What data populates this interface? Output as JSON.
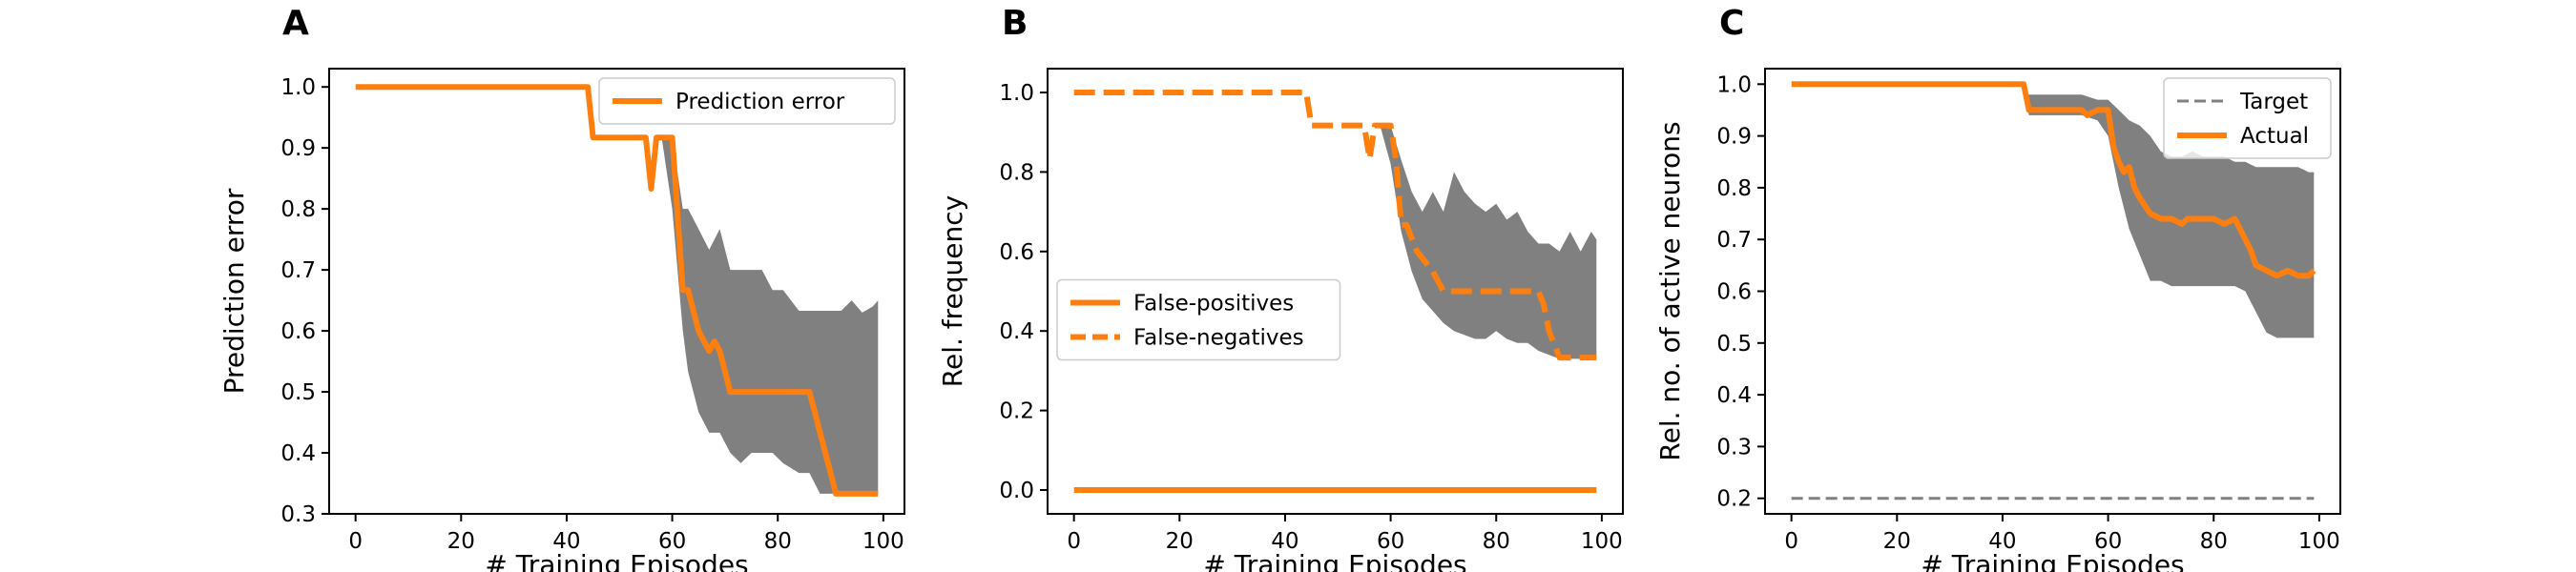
{
  "chart_data": [
    {
      "panel_label": "A",
      "type": "line",
      "xlabel": "# Training Episodes",
      "ylabel": "Prediction error",
      "xlim": [
        -5,
        104
      ],
      "ylim": [
        0.3,
        1.03
      ],
      "xticks": [
        0,
        20,
        40,
        60,
        80,
        100
      ],
      "yticks": [
        0.3,
        0.4,
        0.5,
        0.6,
        0.7,
        0.8,
        0.9,
        1.0
      ],
      "ytick_labels": [
        "0.3",
        "0.4",
        "0.5",
        "0.6",
        "0.7",
        "0.8",
        "0.9",
        "1.0"
      ],
      "legend": {
        "position": "upper right",
        "entries": [
          {
            "label": "Prediction error",
            "color": "#ff7f0e",
            "style": "solid"
          }
        ]
      },
      "series": [
        {
          "name": "Prediction error",
          "color": "#ff7f0e",
          "style": "solid",
          "x": [
            0,
            44,
            45,
            55,
            56,
            57,
            60,
            62,
            63,
            65,
            67,
            68,
            69,
            71,
            72,
            86,
            87,
            88,
            90,
            91,
            99
          ],
          "y": [
            1.0,
            1.0,
            0.917,
            0.917,
            0.833,
            0.917,
            0.917,
            0.667,
            0.667,
            0.6,
            0.567,
            0.583,
            0.567,
            0.5,
            0.5,
            0.5,
            0.467,
            0.433,
            0.367,
            0.333,
            0.333
          ]
        }
      ],
      "band": {
        "color": "#808080",
        "x": [
          58,
          60,
          62,
          63,
          65,
          67,
          69,
          71,
          73,
          75,
          77,
          79,
          81,
          84,
          86,
          88,
          90,
          92,
          94,
          96,
          98,
          99
        ],
        "upper": [
          0.917,
          0.917,
          0.8,
          0.8,
          0.767,
          0.733,
          0.767,
          0.7,
          0.7,
          0.7,
          0.7,
          0.667,
          0.667,
          0.633,
          0.633,
          0.633,
          0.633,
          0.633,
          0.65,
          0.63,
          0.64,
          0.65
        ],
        "lower": [
          0.917,
          0.8,
          0.6,
          0.533,
          0.467,
          0.433,
          0.433,
          0.4,
          0.383,
          0.4,
          0.4,
          0.4,
          0.383,
          0.367,
          0.367,
          0.333,
          0.333,
          0.333,
          0.333,
          0.333,
          0.333,
          0.333
        ]
      }
    },
    {
      "panel_label": "B",
      "type": "line",
      "xlabel": "# Training Episodes",
      "ylabel": "Rel. frequency",
      "xlim": [
        -5,
        104
      ],
      "ylim": [
        -0.06,
        1.06
      ],
      "xticks": [
        0,
        20,
        40,
        60,
        80,
        100
      ],
      "yticks": [
        0.0,
        0.2,
        0.4,
        0.6,
        0.8,
        1.0
      ],
      "ytick_labels": [
        "0.0",
        "0.2",
        "0.4",
        "0.6",
        "0.8",
        "1.0"
      ],
      "legend": {
        "position": "center left",
        "entries": [
          {
            "label": "False-positives",
            "color": "#ff7f0e",
            "style": "solid"
          },
          {
            "label": "False-negatives",
            "color": "#ff7f0e",
            "style": "dashed"
          }
        ]
      },
      "series": [
        {
          "name": "False-positives",
          "color": "#ff7f0e",
          "style": "solid",
          "x": [
            0,
            99
          ],
          "y": [
            0.0,
            0.0
          ]
        },
        {
          "name": "False-negatives",
          "color": "#ff7f0e",
          "style": "dashed",
          "x": [
            0,
            44,
            45,
            55,
            56,
            57,
            60,
            61,
            62,
            63,
            65,
            67,
            68,
            70,
            72,
            88,
            89,
            90,
            91,
            92,
            99
          ],
          "y": [
            1.0,
            1.0,
            0.917,
            0.917,
            0.833,
            0.917,
            0.917,
            0.833,
            0.667,
            0.667,
            0.6,
            0.567,
            0.55,
            0.5,
            0.5,
            0.5,
            0.467,
            0.4,
            0.367,
            0.333,
            0.333
          ]
        }
      ],
      "band": {
        "color": "#808080",
        "x": [
          58,
          60,
          62,
          64,
          66,
          68,
          70,
          72,
          74,
          76,
          78,
          80,
          82,
          84,
          86,
          88,
          90,
          92,
          94,
          96,
          98,
          99
        ],
        "upper": [
          0.917,
          0.917,
          0.83,
          0.75,
          0.7,
          0.75,
          0.7,
          0.8,
          0.75,
          0.72,
          0.7,
          0.72,
          0.68,
          0.7,
          0.65,
          0.62,
          0.62,
          0.6,
          0.65,
          0.6,
          0.65,
          0.63
        ],
        "lower": [
          0.917,
          0.82,
          0.65,
          0.55,
          0.48,
          0.45,
          0.42,
          0.4,
          0.39,
          0.38,
          0.38,
          0.4,
          0.38,
          0.37,
          0.37,
          0.35,
          0.34,
          0.33,
          0.33,
          0.33,
          0.33,
          0.33
        ]
      }
    },
    {
      "panel_label": "C",
      "type": "line",
      "xlabel": "# Training Episodes",
      "ylabel": "Rel. no. of active neurons",
      "xlim": [
        -5,
        104
      ],
      "ylim": [
        0.17,
        1.03
      ],
      "xticks": [
        0,
        20,
        40,
        60,
        80,
        100
      ],
      "yticks": [
        0.2,
        0.3,
        0.4,
        0.5,
        0.6,
        0.7,
        0.8,
        0.9,
        1.0
      ],
      "ytick_labels": [
        "0.2",
        "0.3",
        "0.4",
        "0.5",
        "0.6",
        "0.7",
        "0.8",
        "0.9",
        "1.0"
      ],
      "legend": {
        "position": "upper right",
        "entries": [
          {
            "label": "Target",
            "color": "#808080",
            "style": "dashed"
          },
          {
            "label": "Actual",
            "color": "#ff7f0e",
            "style": "solid"
          }
        ]
      },
      "series": [
        {
          "name": "Target",
          "color": "#808080",
          "style": "dashed",
          "x": [
            0,
            99
          ],
          "y": [
            0.2,
            0.2
          ]
        },
        {
          "name": "Actual",
          "color": "#ff7f0e",
          "style": "solid",
          "x": [
            0,
            44,
            45,
            55,
            56,
            58,
            60,
            61,
            62,
            63,
            64,
            65,
            66,
            68,
            70,
            72,
            74,
            75,
            76,
            78,
            80,
            82,
            84,
            86,
            87,
            88,
            90,
            92,
            94,
            96,
            98,
            99
          ],
          "y": [
            1.0,
            1.0,
            0.95,
            0.95,
            0.94,
            0.95,
            0.95,
            0.88,
            0.85,
            0.83,
            0.84,
            0.8,
            0.78,
            0.75,
            0.74,
            0.74,
            0.73,
            0.74,
            0.74,
            0.74,
            0.74,
            0.73,
            0.74,
            0.7,
            0.68,
            0.65,
            0.64,
            0.63,
            0.64,
            0.63,
            0.63,
            0.64
          ]
        }
      ],
      "band": {
        "color": "#808080",
        "x": [
          44,
          45,
          48,
          52,
          55,
          58,
          60,
          62,
          64,
          66,
          68,
          70,
          72,
          74,
          76,
          78,
          80,
          82,
          84,
          86,
          88,
          90,
          92,
          94,
          96,
          98,
          99
        ],
        "upper": [
          1.0,
          0.98,
          0.98,
          0.98,
          0.98,
          0.97,
          0.97,
          0.95,
          0.93,
          0.92,
          0.9,
          0.87,
          0.86,
          0.86,
          0.87,
          0.86,
          0.86,
          0.86,
          0.85,
          0.85,
          0.84,
          0.84,
          0.84,
          0.84,
          0.84,
          0.83,
          0.83
        ],
        "lower": [
          1.0,
          0.94,
          0.94,
          0.94,
          0.94,
          0.93,
          0.9,
          0.8,
          0.72,
          0.67,
          0.62,
          0.62,
          0.61,
          0.61,
          0.61,
          0.61,
          0.61,
          0.61,
          0.61,
          0.6,
          0.56,
          0.52,
          0.51,
          0.51,
          0.51,
          0.51,
          0.51
        ]
      }
    }
  ]
}
